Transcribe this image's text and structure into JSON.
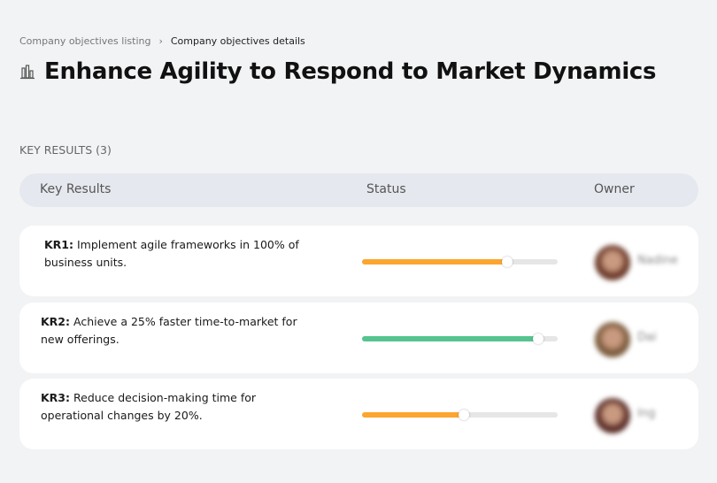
{
  "breadcrumb": {
    "parent": "Company objectives listing",
    "separator": "›",
    "current": "Company objectives details"
  },
  "page": {
    "title": "Enhance Agility to Respond to Market Dynamics",
    "icon": "building-chart-icon"
  },
  "section": {
    "label": "KEY RESULTS (3)"
  },
  "table": {
    "headers": {
      "key_results": "Key Results",
      "status": "Status",
      "owner": "Owner"
    }
  },
  "rows": [
    {
      "id": "KR1:",
      "text": "Implement agile frameworks in 100% of business units.",
      "progress": 74,
      "color": "#fca52f",
      "owner": "Nadine",
      "avatar_color": "#6b3a2a"
    },
    {
      "id": "KR2:",
      "text": "Achieve a 25% faster time-to-market for new offerings.",
      "progress": 90,
      "color": "#55c48e",
      "owner": "Dai",
      "avatar_color": "#7a5a3c"
    },
    {
      "id": "KR3:",
      "text": "Reduce decision-making time for operational changes by 20%.",
      "progress": 52,
      "color": "#fca52f",
      "owner": "Ing",
      "avatar_color": "#5a2e28"
    }
  ]
}
